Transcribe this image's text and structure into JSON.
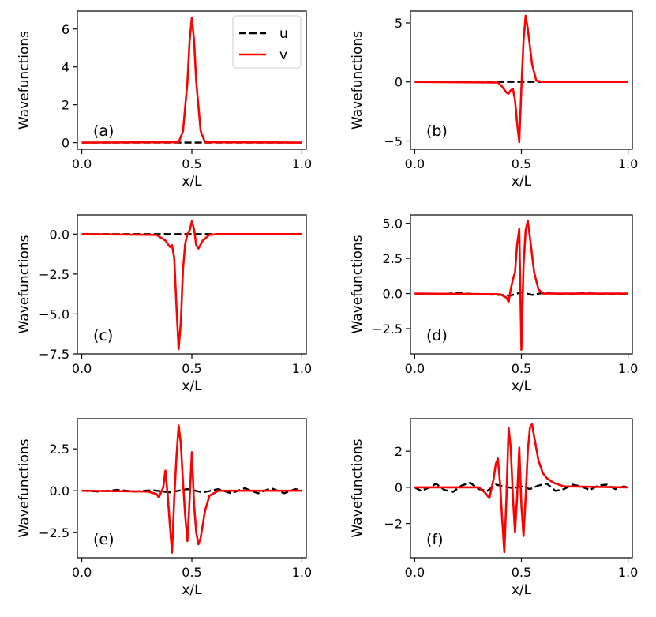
{
  "figure_colors": {
    "u": "#000000",
    "v": "#ff0000"
  },
  "legend": {
    "u": "u",
    "v": "v"
  },
  "chart_data": [
    {
      "type": "line",
      "panel": "(a)",
      "xlabel": "x/L",
      "ylabel": "Wavefunctions",
      "xlim": [
        -0.02,
        1.02
      ],
      "ylim": [
        -0.35,
        6.95
      ],
      "xticks": [
        0.0,
        0.5,
        1.0
      ],
      "xtick_labels": [
        "0.0",
        "0.5",
        "1.0"
      ],
      "yticks": [
        0,
        2,
        4,
        6
      ],
      "ytick_labels": [
        "0",
        "2",
        "4",
        "6"
      ],
      "series": [
        {
          "name": "u",
          "style": "dashed",
          "x": [
            0,
            0.45,
            0.5,
            0.55,
            1.0
          ],
          "y": [
            0,
            0,
            0,
            0,
            0
          ]
        },
        {
          "name": "v",
          "style": "solid",
          "x": [
            0,
            0.44,
            0.46,
            0.48,
            0.49,
            0.5,
            0.51,
            0.52,
            0.54,
            0.56,
            1.0
          ],
          "y": [
            0,
            0.02,
            0.6,
            3.2,
            5.4,
            6.6,
            5.4,
            3.2,
            0.6,
            0.02,
            0
          ]
        }
      ]
    },
    {
      "type": "line",
      "panel": "(b)",
      "xlabel": "x/L",
      "ylabel": "Wavefunctions",
      "xlim": [
        -0.02,
        1.02
      ],
      "ylim": [
        -5.7,
        6.0
      ],
      "xticks": [
        0.0,
        0.5,
        1.0
      ],
      "xtick_labels": [
        "0.0",
        "0.5",
        "1.0"
      ],
      "yticks": [
        -5,
        0,
        5
      ],
      "ytick_labels": [
        "−5",
        "0",
        "5"
      ],
      "series": [
        {
          "name": "u",
          "style": "dashed",
          "x": [
            0,
            0.4,
            0.5,
            0.57,
            1.0
          ],
          "y": [
            0,
            0,
            0,
            0,
            0
          ]
        },
        {
          "name": "v",
          "style": "solid",
          "x": [
            0,
            0.39,
            0.41,
            0.43,
            0.44,
            0.45,
            0.46,
            0.47,
            0.48,
            0.49,
            0.5,
            0.51,
            0.52,
            0.53,
            0.55,
            0.57,
            0.6,
            1.0
          ],
          "y": [
            0,
            -0.05,
            -0.4,
            -0.9,
            -1.0,
            -0.7,
            -0.6,
            -1.5,
            -3.5,
            -5.1,
            -0.5,
            3.5,
            5.6,
            4.5,
            1.5,
            0.1,
            0,
            0
          ]
        }
      ]
    },
    {
      "type": "line",
      "panel": "(c)",
      "xlabel": "x/L",
      "ylabel": "Wavefunctions",
      "xlim": [
        -0.02,
        1.02
      ],
      "ylim": [
        -7.5,
        1.2
      ],
      "xticks": [
        0.0,
        0.5,
        1.0
      ],
      "xtick_labels": [
        "0.0",
        "0.5",
        "1.0"
      ],
      "yticks": [
        -7.5,
        -5.0,
        -2.5,
        0.0
      ],
      "ytick_labels": [
        "−7.5",
        "−5.0",
        "−2.5",
        "0.0"
      ],
      "series": [
        {
          "name": "u",
          "style": "dashed",
          "x": [
            0,
            0.35,
            0.5,
            0.6,
            1.0
          ],
          "y": [
            0,
            0,
            0,
            0,
            0
          ]
        },
        {
          "name": "v",
          "style": "solid",
          "x": [
            0,
            0.34,
            0.38,
            0.4,
            0.41,
            0.42,
            0.43,
            0.44,
            0.45,
            0.46,
            0.47,
            0.48,
            0.49,
            0.5,
            0.51,
            0.52,
            0.53,
            0.55,
            0.58,
            0.62,
            1.0
          ],
          "y": [
            0,
            -0.05,
            -0.4,
            -0.8,
            -0.7,
            -1.5,
            -4.5,
            -7.2,
            -5.5,
            -2.2,
            -0.6,
            0.0,
            0.2,
            0.8,
            0.3,
            -0.7,
            -0.9,
            -0.4,
            -0.05,
            0,
            0
          ]
        }
      ]
    },
    {
      "type": "line",
      "panel": "(d)",
      "xlabel": "x/L",
      "ylabel": "Wavefunctions",
      "xlim": [
        -0.02,
        1.02
      ],
      "ylim": [
        -4.3,
        5.6
      ],
      "xticks": [
        0.0,
        0.5,
        1.0
      ],
      "xtick_labels": [
        "0.0",
        "0.5",
        "1.0"
      ],
      "yticks": [
        -2.5,
        0.0,
        2.5,
        5.0
      ],
      "ytick_labels": [
        "−2.5",
        "0.0",
        "2.5",
        "5.0"
      ],
      "series": [
        {
          "name": "u",
          "style": "dashed",
          "x": [
            0,
            0.1,
            0.2,
            0.3,
            0.4,
            0.45,
            0.5,
            0.55,
            0.6,
            0.7,
            0.8,
            0.9,
            1.0
          ],
          "y": [
            0,
            -0.05,
            0.03,
            -0.05,
            -0.1,
            -0.15,
            0.1,
            -0.1,
            0.05,
            -0.05,
            0.03,
            -0.05,
            0
          ]
        },
        {
          "name": "v",
          "style": "solid",
          "x": [
            0,
            0.4,
            0.43,
            0.44,
            0.45,
            0.46,
            0.47,
            0.48,
            0.49,
            0.5,
            0.51,
            0.52,
            0.53,
            0.54,
            0.56,
            0.58,
            0.6,
            1.0
          ],
          "y": [
            0,
            -0.05,
            -0.3,
            -0.6,
            0.3,
            1.0,
            1.5,
            3.5,
            4.6,
            -4.0,
            2.0,
            4.5,
            5.2,
            4.0,
            1.5,
            0.3,
            0,
            0
          ]
        }
      ]
    },
    {
      "type": "line",
      "panel": "(e)",
      "xlabel": "x/L",
      "ylabel": "Wavefunctions",
      "xlim": [
        -0.02,
        1.02
      ],
      "ylim": [
        -4.0,
        4.3
      ],
      "xticks": [
        0.0,
        0.5,
        1.0
      ],
      "xtick_labels": [
        "0.0",
        "0.5",
        "1.0"
      ],
      "yticks": [
        -2.5,
        0.0,
        2.5
      ],
      "ytick_labels": [
        "−2.5",
        "0.0",
        "2.5"
      ],
      "series": [
        {
          "name": "u",
          "style": "dashed",
          "x": [
            0,
            0.08,
            0.16,
            0.24,
            0.32,
            0.4,
            0.48,
            0.55,
            0.62,
            0.68,
            0.74,
            0.8,
            0.86,
            0.92,
            0.97,
            1.0
          ],
          "y": [
            0,
            -0.05,
            0.05,
            -0.05,
            0.03,
            -0.1,
            0.1,
            -0.1,
            0.1,
            -0.15,
            0.15,
            -0.15,
            0.15,
            -0.15,
            0.1,
            0
          ]
        },
        {
          "name": "v",
          "style": "solid",
          "x": [
            0,
            0.3,
            0.34,
            0.35,
            0.37,
            0.38,
            0.39,
            0.4,
            0.41,
            0.42,
            0.43,
            0.44,
            0.45,
            0.46,
            0.47,
            0.48,
            0.49,
            0.5,
            0.51,
            0.52,
            0.53,
            0.54,
            0.56,
            0.58,
            0.62,
            1.0
          ],
          "y": [
            0,
            -0.05,
            -0.2,
            -0.4,
            0.2,
            1.2,
            -0.2,
            -2.0,
            -3.7,
            -0.5,
            2.0,
            3.9,
            2.8,
            0.5,
            -1.5,
            -3.0,
            -0.5,
            2.3,
            -0.8,
            -2.5,
            -3.2,
            -2.8,
            -1.2,
            -0.3,
            0,
            0
          ]
        }
      ]
    },
    {
      "type": "line",
      "panel": "(f)",
      "xlabel": "x/L",
      "ylabel": "Wavefunctions",
      "xlim": [
        -0.02,
        1.02
      ],
      "ylim": [
        -3.9,
        3.8
      ],
      "xticks": [
        0.0,
        0.5,
        1.0
      ],
      "xtick_labels": [
        "0.0",
        "0.5",
        "1.0"
      ],
      "yticks": [
        -2,
        0,
        2
      ],
      "ytick_labels": [
        "−2",
        "0",
        "2"
      ],
      "series": [
        {
          "name": "u",
          "style": "dashed",
          "x": [
            0,
            0.03,
            0.07,
            0.1,
            0.14,
            0.18,
            0.22,
            0.26,
            0.3,
            0.34,
            0.38,
            0.42,
            0.46,
            0.5,
            0.54,
            0.58,
            0.62,
            0.66,
            0.7,
            0.74,
            0.78,
            0.82,
            0.86,
            0.9,
            0.94,
            0.98,
            1.0
          ],
          "y": [
            0,
            -0.2,
            0.0,
            0.2,
            -0.15,
            -0.25,
            0.1,
            0.25,
            -0.1,
            -0.2,
            0.15,
            0.05,
            -0.05,
            0.05,
            -0.1,
            0.1,
            0.2,
            -0.2,
            -0.1,
            0.15,
            0.05,
            -0.15,
            0.1,
            0.15,
            -0.1,
            0.05,
            0
          ]
        },
        {
          "name": "v",
          "style": "solid",
          "x": [
            0,
            0.3,
            0.33,
            0.35,
            0.37,
            0.38,
            0.39,
            0.4,
            0.41,
            0.42,
            0.43,
            0.44,
            0.45,
            0.46,
            0.47,
            0.48,
            0.49,
            0.5,
            0.51,
            0.52,
            0.53,
            0.54,
            0.55,
            0.56,
            0.58,
            0.6,
            0.62,
            0.65,
            0.7,
            1.0
          ],
          "y": [
            0,
            0.0,
            -0.3,
            -0.6,
            0.5,
            1.3,
            1.6,
            0.2,
            -1.8,
            -3.6,
            -0.5,
            3.3,
            2.2,
            -0.5,
            -2.5,
            -0.5,
            2.2,
            -1.0,
            -2.7,
            -0.5,
            2.0,
            3.3,
            3.5,
            2.8,
            1.5,
            0.8,
            0.5,
            0.25,
            0.05,
            0
          ]
        }
      ]
    }
  ]
}
